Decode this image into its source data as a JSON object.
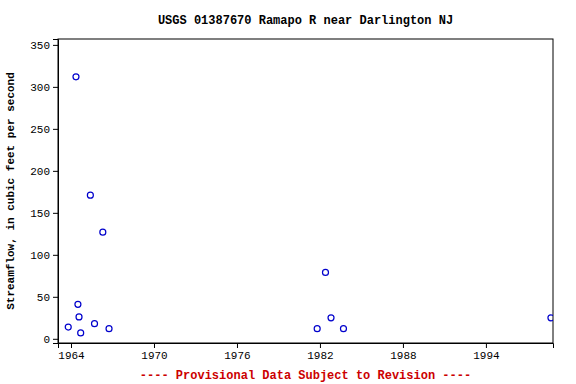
{
  "chart_data": {
    "type": "scatter",
    "title": "USGS 01387670 Ramapo R near Darlington NJ",
    "y_label": "Streamflow, in cubic feet per second",
    "annotations": [
      "---- Provisional Data Subject to Revision ----"
    ],
    "x": [
      1963.8,
      1964.36,
      1964.5,
      1964.58,
      1964.7,
      1965.4,
      1965.7,
      1966.3,
      1966.75,
      1981.8,
      1982.4,
      1982.8,
      1983.7,
      1998.7
    ],
    "values": [
      14,
      312,
      41,
      26,
      7,
      171,
      18,
      127,
      12,
      12,
      79,
      25,
      12,
      25
    ],
    "color": "#0000cc",
    "marker": "circle",
    "xlim": [
      1963.06,
      1998.85
    ],
    "xticks": [
      1964,
      1970,
      1976,
      1982,
      1988,
      1994
    ],
    "ylim": [
      -5,
      357
    ],
    "yticks": [
      0,
      50,
      100,
      150,
      200,
      250,
      300,
      350
    ],
    "grid": false
  }
}
